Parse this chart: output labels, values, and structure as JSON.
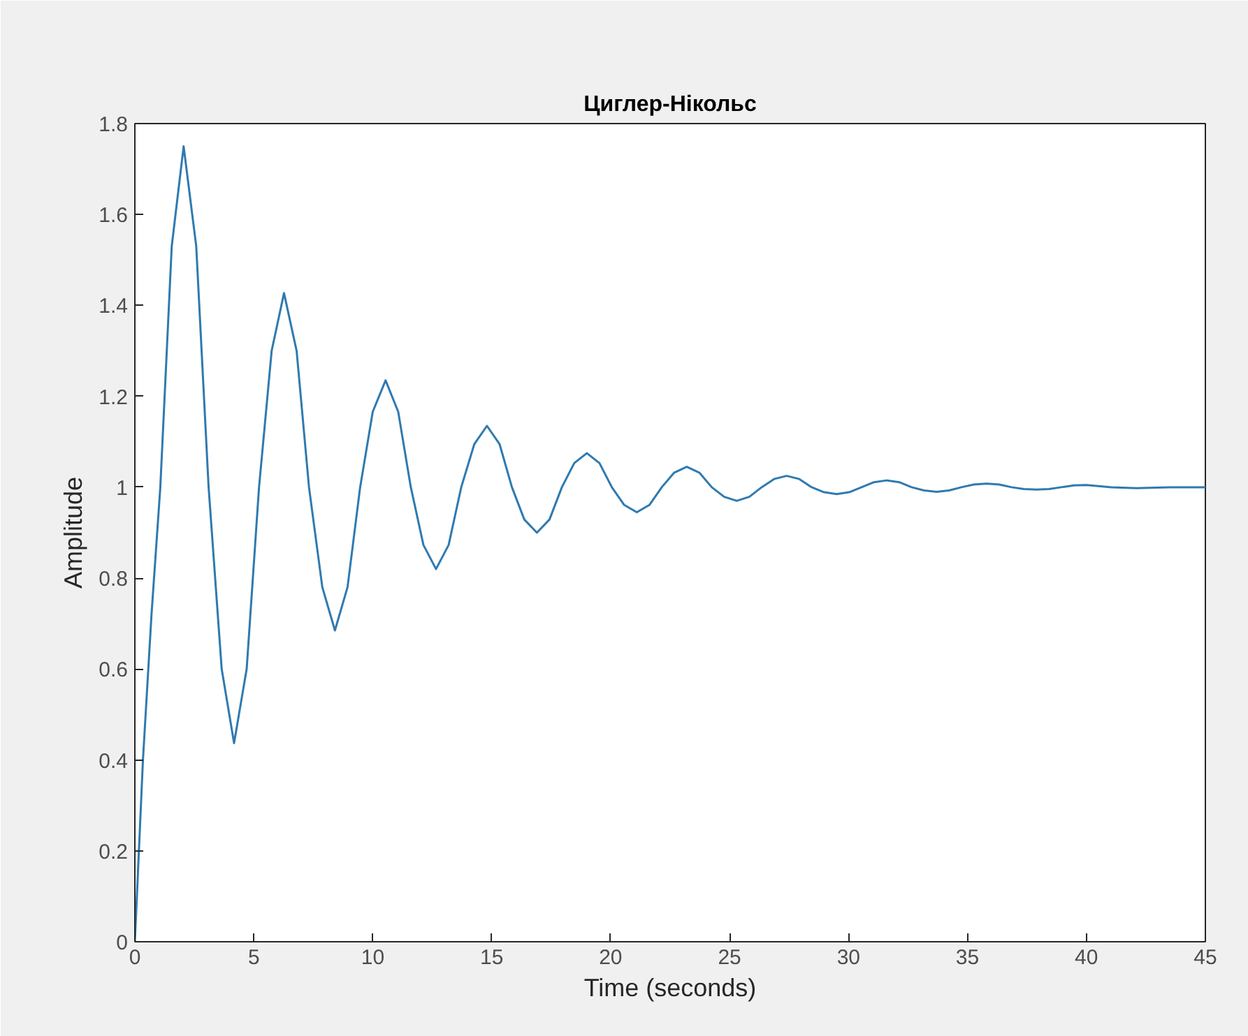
{
  "chart_data": {
    "type": "line",
    "title": "Циглер-Нікольс",
    "xlabel": "Time (seconds)",
    "ylabel": "Amplitude",
    "xlim": [
      0,
      45
    ],
    "ylim": [
      0,
      1.8
    ],
    "xticks": [
      0,
      5,
      10,
      15,
      20,
      25,
      30,
      35,
      40,
      45
    ],
    "yticks": [
      0,
      0.2,
      0.4,
      0.6,
      0.8,
      1,
      1.2,
      1.4,
      1.6,
      1.8
    ],
    "grid": false,
    "series": [
      {
        "color": "#2f7ab0",
        "x": [
          0,
          0.34,
          0.7,
          1.07,
          1.55,
          2.05,
          2.58,
          3.1,
          3.65,
          4.17,
          4.7,
          5.22,
          5.75,
          6.27,
          6.8,
          7.32,
          7.88,
          8.41,
          8.94,
          9.47,
          10.0,
          10.54,
          11.07,
          11.6,
          12.13,
          12.66,
          13.19,
          13.72,
          14.27,
          14.8,
          15.33,
          15.85,
          16.37,
          16.9,
          17.43,
          17.95,
          18.47,
          19.0,
          19.53,
          20.05,
          20.57,
          21.1,
          21.63,
          22.15,
          22.67,
          23.2,
          23.73,
          24.25,
          24.77,
          25.3,
          25.83,
          26.35,
          26.87,
          27.4,
          27.93,
          28.45,
          28.97,
          29.5,
          30.03,
          30.55,
          31.07,
          31.6,
          32.13,
          32.65,
          33.17,
          33.7,
          34.23,
          34.75,
          35.27,
          35.8,
          36.33,
          36.85,
          37.37,
          37.9,
          38.43,
          38.95,
          39.47,
          40.0,
          41.05,
          42.1,
          43.5,
          45
        ],
        "values": [
          0,
          0.4,
          0.72,
          1.0,
          1.53,
          1.75,
          1.53,
          1,
          0.6,
          0.437,
          0.6,
          1,
          1.3,
          1.427,
          1.3,
          1,
          0.78,
          0.685,
          0.78,
          1,
          1.166,
          1.235,
          1.166,
          1,
          0.873,
          0.82,
          0.873,
          1,
          1.095,
          1.135,
          1.095,
          1,
          0.929,
          0.9,
          0.929,
          1,
          1.053,
          1.075,
          1.053,
          1,
          0.961,
          0.945,
          0.961,
          1,
          1.032,
          1.045,
          1.032,
          1,
          0.979,
          0.97,
          0.979,
          1,
          1.018,
          1.025,
          1.018,
          1,
          0.989,
          0.985,
          0.989,
          1,
          1.011,
          1.015,
          1.011,
          1,
          0.993,
          0.99,
          0.993,
          1,
          1.006,
          1.008,
          1.006,
          1,
          0.996,
          0.995,
          0.996,
          1,
          1.004,
          1.005,
          1,
          0.998,
          1,
          1
        ]
      }
    ]
  }
}
